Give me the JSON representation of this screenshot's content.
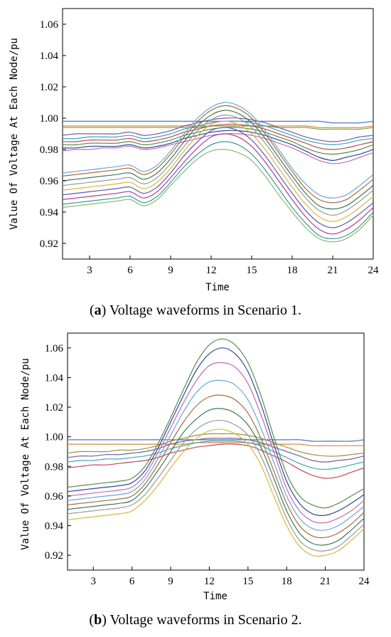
{
  "chart_data": [
    {
      "type": "line",
      "panel": "a",
      "caption_letter": "a",
      "caption_text": ") Voltage waveforms in Scenario 1.",
      "caption_open": "(",
      "xlabel": "Time",
      "ylabel": "Value Of Voltage At Each Node/pu",
      "xlim": [
        1,
        24
      ],
      "ylim": [
        0.91,
        1.07
      ],
      "x_ticks": [
        "3",
        "6",
        "9",
        "12",
        "15",
        "18",
        "21",
        "24"
      ],
      "y_ticks": [
        "0.92",
        "0.94",
        "0.96",
        "0.98",
        "1.00",
        "1.02",
        "1.04",
        "1.06"
      ],
      "x": [
        1,
        2,
        3,
        4,
        5,
        6,
        7,
        8,
        9,
        10,
        11,
        12,
        13,
        14,
        15,
        16,
        17,
        18,
        19,
        20,
        21,
        22,
        23,
        24
      ],
      "series": [
        {
          "values": [
            0.998,
            0.998,
            0.998,
            0.998,
            0.998,
            0.998,
            0.998,
            0.998,
            0.998,
            0.998,
            0.998,
            0.998,
            0.998,
            0.998,
            0.998,
            0.998,
            0.998,
            0.998,
            0.998,
            0.998,
            0.997,
            0.997,
            0.997,
            0.998
          ]
        },
        {
          "values": [
            0.995,
            0.995,
            0.995,
            0.995,
            0.995,
            0.995,
            0.995,
            0.995,
            0.995,
            0.995,
            0.995,
            0.995,
            0.995,
            0.995,
            0.995,
            0.995,
            0.995,
            0.995,
            0.995,
            0.994,
            0.994,
            0.994,
            0.994,
            0.995
          ]
        },
        {
          "values": [
            0.994,
            0.994,
            0.994,
            0.994,
            0.994,
            0.994,
            0.994,
            0.994,
            0.994,
            0.994,
            0.994,
            0.995,
            0.995,
            0.995,
            0.995,
            0.995,
            0.994,
            0.994,
            0.994,
            0.993,
            0.993,
            0.993,
            0.993,
            0.994
          ]
        },
        {
          "values": [
            0.989,
            0.99,
            0.99,
            0.99,
            0.99,
            0.991,
            0.989,
            0.99,
            0.992,
            0.995,
            0.997,
            0.999,
            1.0,
            1.0,
            0.999,
            0.997,
            0.994,
            0.991,
            0.988,
            0.986,
            0.985,
            0.986,
            0.988,
            0.989
          ]
        },
        {
          "values": [
            0.987,
            0.987,
            0.988,
            0.988,
            0.988,
            0.989,
            0.987,
            0.988,
            0.99,
            0.993,
            0.995,
            0.997,
            0.998,
            0.998,
            0.997,
            0.995,
            0.992,
            0.989,
            0.986,
            0.984,
            0.983,
            0.984,
            0.986,
            0.987
          ]
        },
        {
          "values": [
            0.985,
            0.985,
            0.986,
            0.986,
            0.986,
            0.987,
            0.985,
            0.986,
            0.988,
            0.991,
            0.993,
            0.995,
            0.996,
            0.996,
            0.995,
            0.993,
            0.99,
            0.987,
            0.984,
            0.981,
            0.98,
            0.981,
            0.983,
            0.985
          ]
        },
        {
          "values": [
            0.983,
            0.983,
            0.984,
            0.984,
            0.984,
            0.985,
            0.983,
            0.984,
            0.986,
            0.989,
            0.991,
            0.993,
            0.994,
            0.994,
            0.993,
            0.991,
            0.988,
            0.985,
            0.981,
            0.978,
            0.977,
            0.978,
            0.98,
            0.983
          ]
        },
        {
          "values": [
            0.981,
            0.981,
            0.982,
            0.982,
            0.982,
            0.983,
            0.981,
            0.982,
            0.984,
            0.987,
            0.989,
            0.991,
            0.992,
            0.992,
            0.991,
            0.989,
            0.986,
            0.983,
            0.979,
            0.975,
            0.973,
            0.975,
            0.977,
            0.98
          ]
        },
        {
          "values": [
            0.979,
            0.98,
            0.98,
            0.981,
            0.981,
            0.982,
            0.98,
            0.981,
            0.983,
            0.985,
            0.987,
            0.989,
            0.99,
            0.99,
            0.989,
            0.987,
            0.984,
            0.981,
            0.977,
            0.973,
            0.971,
            0.972,
            0.975,
            0.978
          ]
        },
        {
          "values": [
            0.965,
            0.966,
            0.967,
            0.968,
            0.969,
            0.97,
            0.966,
            0.97,
            0.979,
            0.99,
            1.0,
            1.007,
            1.01,
            1.008,
            1.002,
            0.992,
            0.98,
            0.968,
            0.958,
            0.951,
            0.949,
            0.951,
            0.957,
            0.964
          ]
        },
        {
          "values": [
            0.963,
            0.964,
            0.965,
            0.966,
            0.967,
            0.968,
            0.964,
            0.968,
            0.977,
            0.988,
            0.998,
            1.005,
            1.008,
            1.006,
            1.0,
            0.99,
            0.978,
            0.966,
            0.955,
            0.948,
            0.946,
            0.948,
            0.954,
            0.961
          ]
        },
        {
          "values": [
            0.96,
            0.961,
            0.962,
            0.963,
            0.964,
            0.965,
            0.961,
            0.965,
            0.974,
            0.985,
            0.995,
            1.002,
            1.005,
            1.003,
            0.997,
            0.987,
            0.975,
            0.963,
            0.952,
            0.944,
            0.942,
            0.944,
            0.95,
            0.957
          ]
        },
        {
          "values": [
            0.957,
            0.958,
            0.959,
            0.96,
            0.961,
            0.962,
            0.958,
            0.962,
            0.971,
            0.982,
            0.992,
            0.999,
            1.002,
            1.0,
            0.994,
            0.984,
            0.972,
            0.96,
            0.949,
            0.941,
            0.938,
            0.941,
            0.947,
            0.954
          ]
        },
        {
          "values": [
            0.954,
            0.955,
            0.956,
            0.957,
            0.958,
            0.959,
            0.955,
            0.959,
            0.968,
            0.979,
            0.989,
            0.996,
            0.998,
            0.996,
            0.99,
            0.98,
            0.968,
            0.956,
            0.945,
            0.937,
            0.934,
            0.937,
            0.943,
            0.95
          ]
        },
        {
          "values": [
            0.951,
            0.952,
            0.953,
            0.954,
            0.955,
            0.956,
            0.952,
            0.956,
            0.965,
            0.976,
            0.985,
            0.992,
            0.994,
            0.992,
            0.986,
            0.976,
            0.964,
            0.952,
            0.941,
            0.933,
            0.93,
            0.933,
            0.939,
            0.946
          ]
        },
        {
          "values": [
            0.948,
            0.949,
            0.95,
            0.951,
            0.952,
            0.953,
            0.949,
            0.953,
            0.962,
            0.972,
            0.981,
            0.988,
            0.99,
            0.988,
            0.982,
            0.972,
            0.96,
            0.948,
            0.937,
            0.929,
            0.926,
            0.929,
            0.935,
            0.943
          ]
        },
        {
          "values": [
            0.945,
            0.946,
            0.947,
            0.948,
            0.949,
            0.95,
            0.946,
            0.95,
            0.959,
            0.969,
            0.977,
            0.983,
            0.985,
            0.983,
            0.977,
            0.967,
            0.955,
            0.943,
            0.933,
            0.925,
            0.923,
            0.925,
            0.931,
            0.94
          ]
        },
        {
          "values": [
            0.943,
            0.944,
            0.945,
            0.946,
            0.947,
            0.948,
            0.944,
            0.948,
            0.957,
            0.966,
            0.974,
            0.979,
            0.98,
            0.978,
            0.973,
            0.963,
            0.951,
            0.94,
            0.93,
            0.923,
            0.921,
            0.923,
            0.929,
            0.938
          ]
        }
      ]
    },
    {
      "type": "line",
      "panel": "b",
      "caption_letter": "b",
      "caption_text": ") Voltage waveforms in Scenario 2.",
      "caption_open": "(",
      "xlabel": "Time",
      "ylabel": "Value Of Voltage At Each Node/pu",
      "xlim": [
        1,
        24
      ],
      "ylim": [
        0.91,
        1.07
      ],
      "x_ticks": [
        "3",
        "6",
        "9",
        "12",
        "15",
        "18",
        "21",
        "24"
      ],
      "y_ticks": [
        "0.92",
        "0.94",
        "0.96",
        "0.98",
        "1.00",
        "1.02",
        "1.04",
        "1.06"
      ],
      "x": [
        1,
        2,
        3,
        4,
        5,
        6,
        7,
        8,
        9,
        10,
        11,
        12,
        13,
        14,
        15,
        16,
        17,
        18,
        19,
        20,
        21,
        22,
        23,
        24
      ],
      "series": [
        {
          "values": [
            0.998,
            0.998,
            0.998,
            0.998,
            0.998,
            0.998,
            0.998,
            0.998,
            0.998,
            0.998,
            0.998,
            0.998,
            0.998,
            0.998,
            0.998,
            0.998,
            0.998,
            0.998,
            0.998,
            0.997,
            0.997,
            0.997,
            0.997,
            0.998
          ]
        },
        {
          "values": [
            0.995,
            0.995,
            0.995,
            0.995,
            0.995,
            0.995,
            0.995,
            0.995,
            0.995,
            0.995,
            0.996,
            0.996,
            0.996,
            0.996,
            0.996,
            0.995,
            0.995,
            0.995,
            0.995,
            0.994,
            0.994,
            0.994,
            0.994,
            0.994
          ]
        },
        {
          "values": [
            0.989,
            0.99,
            0.99,
            0.99,
            0.991,
            0.991,
            0.992,
            0.994,
            0.997,
            0.999,
            1.001,
            1.002,
            1.002,
            1.002,
            1.001,
            0.999,
            0.996,
            0.993,
            0.99,
            0.988,
            0.987,
            0.987,
            0.988,
            0.989
          ]
        },
        {
          "values": [
            0.986,
            0.987,
            0.987,
            0.988,
            0.988,
            0.989,
            0.99,
            0.992,
            0.995,
            0.997,
            0.998,
            0.999,
            0.999,
            0.999,
            0.998,
            0.996,
            0.993,
            0.99,
            0.987,
            0.984,
            0.983,
            0.984,
            0.985,
            0.987
          ]
        },
        {
          "values": [
            0.983,
            0.984,
            0.984,
            0.985,
            0.985,
            0.986,
            0.987,
            0.989,
            0.992,
            0.994,
            0.996,
            0.997,
            0.997,
            0.997,
            0.996,
            0.994,
            0.99,
            0.986,
            0.982,
            0.979,
            0.978,
            0.979,
            0.981,
            0.983
          ]
        },
        {
          "values": [
            0.979,
            0.98,
            0.981,
            0.981,
            0.982,
            0.983,
            0.984,
            0.986,
            0.989,
            0.991,
            0.993,
            0.994,
            0.995,
            0.995,
            0.994,
            0.991,
            0.987,
            0.983,
            0.978,
            0.974,
            0.972,
            0.973,
            0.976,
            0.979
          ]
        },
        {
          "values": [
            0.966,
            0.967,
            0.968,
            0.969,
            0.97,
            0.972,
            0.98,
            0.995,
            1.013,
            1.032,
            1.05,
            1.062,
            1.066,
            1.062,
            1.05,
            1.028,
            1.0,
            0.975,
            0.96,
            0.954,
            0.952,
            0.955,
            0.96,
            0.965
          ]
        },
        {
          "values": [
            0.963,
            0.964,
            0.965,
            0.966,
            0.967,
            0.969,
            0.977,
            0.992,
            1.01,
            1.028,
            1.045,
            1.056,
            1.06,
            1.056,
            1.044,
            1.022,
            0.995,
            0.97,
            0.955,
            0.948,
            0.947,
            0.95,
            0.955,
            0.961
          ]
        },
        {
          "values": [
            0.96,
            0.961,
            0.962,
            0.963,
            0.964,
            0.966,
            0.974,
            0.989,
            1.006,
            1.023,
            1.038,
            1.048,
            1.05,
            1.047,
            1.036,
            1.015,
            0.99,
            0.965,
            0.95,
            0.943,
            0.942,
            0.945,
            0.95,
            0.957
          ]
        },
        {
          "values": [
            0.957,
            0.958,
            0.959,
            0.96,
            0.961,
            0.963,
            0.971,
            0.985,
            1.001,
            1.017,
            1.03,
            1.037,
            1.038,
            1.035,
            1.025,
            1.006,
            0.983,
            0.96,
            0.945,
            0.938,
            0.937,
            0.94,
            0.946,
            0.953
          ]
        },
        {
          "values": [
            0.954,
            0.955,
            0.956,
            0.957,
            0.958,
            0.96,
            0.968,
            0.981,
            0.996,
            1.01,
            1.021,
            1.027,
            1.028,
            1.025,
            1.016,
            0.999,
            0.977,
            0.955,
            0.94,
            0.933,
            0.932,
            0.935,
            0.941,
            0.949
          ]
        },
        {
          "values": [
            0.951,
            0.952,
            0.953,
            0.954,
            0.955,
            0.957,
            0.965,
            0.977,
            0.99,
            1.003,
            1.012,
            1.018,
            1.019,
            1.016,
            1.008,
            0.993,
            0.972,
            0.95,
            0.935,
            0.928,
            0.927,
            0.93,
            0.937,
            0.945
          ]
        },
        {
          "values": [
            0.948,
            0.949,
            0.95,
            0.951,
            0.952,
            0.954,
            0.961,
            0.972,
            0.984,
            0.996,
            1.005,
            1.01,
            1.011,
            1.008,
            1.001,
            0.987,
            0.966,
            0.945,
            0.93,
            0.924,
            0.923,
            0.926,
            0.933,
            0.941
          ]
        },
        {
          "values": [
            0.944,
            0.945,
            0.946,
            0.947,
            0.948,
            0.95,
            0.957,
            0.967,
            0.979,
            0.99,
            0.999,
            1.004,
            1.005,
            1.002,
            0.995,
            0.981,
            0.96,
            0.94,
            0.926,
            0.92,
            0.92,
            0.923,
            0.93,
            0.938
          ]
        }
      ]
    }
  ],
  "colors": {
    "palette": [
      "#4a7ab8",
      "#d18a3a",
      "#8a9a3a",
      "#7a5aa8",
      "#3aa8b8",
      "#b84a5a",
      "#5a8a4a",
      "#2a4a9a",
      "#c86aa8",
      "#6aa8d8",
      "#a86a3a",
      "#3a7a5a",
      "#9a9a9a",
      "#d8b83a",
      "#5a5ab8",
      "#b83a8a",
      "#3a9a9a",
      "#8ab86a"
    ],
    "axis": "#000000",
    "background": "#ffffff"
  }
}
